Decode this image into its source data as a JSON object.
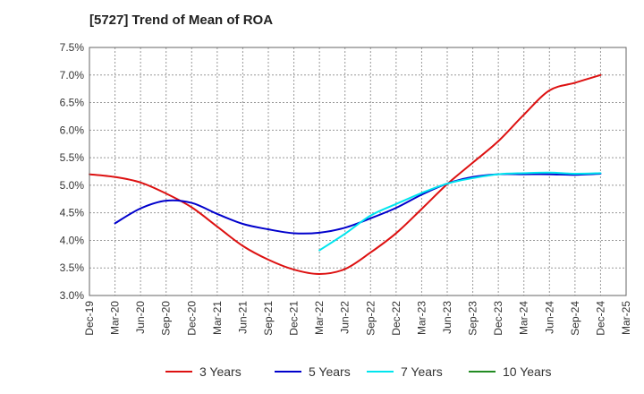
{
  "title": "[5727]  Trend of Mean of ROA",
  "chart_data": {
    "type": "line",
    "title": "[5727]  Trend of Mean of ROA",
    "xlabel": "",
    "ylabel": "",
    "ylim": [
      3.0,
      7.5
    ],
    "y_ticks": [
      "3.0%",
      "3.5%",
      "4.0%",
      "4.5%",
      "5.0%",
      "5.5%",
      "6.0%",
      "6.5%",
      "7.0%",
      "7.5%"
    ],
    "x_ticks": [
      "Dec-19",
      "Mar-20",
      "Jun-20",
      "Sep-20",
      "Dec-20",
      "Mar-21",
      "Jun-21",
      "Sep-21",
      "Dec-21",
      "Mar-22",
      "Jun-22",
      "Sep-22",
      "Dec-22",
      "Mar-23",
      "Jun-23",
      "Sep-23",
      "Dec-23",
      "Mar-24",
      "Jun-24",
      "Sep-24",
      "Dec-24",
      "Mar-25"
    ],
    "grid": true,
    "legend_position": "bottom",
    "series": [
      {
        "name": "3 Years",
        "color": "#dd1111",
        "x": [
          "Dec-19",
          "Mar-20",
          "Jun-20",
          "Sep-20",
          "Dec-20",
          "Mar-21",
          "Jun-21",
          "Sep-21",
          "Dec-21",
          "Mar-22",
          "Jun-22",
          "Sep-22",
          "Dec-22",
          "Mar-23",
          "Jun-23",
          "Sep-23",
          "Dec-23",
          "Mar-24",
          "Jun-24",
          "Sep-24",
          "Dec-24"
        ],
        "values": [
          5.2,
          5.15,
          5.05,
          4.85,
          4.6,
          4.25,
          3.9,
          3.65,
          3.47,
          3.39,
          3.48,
          3.78,
          4.13,
          4.57,
          5.02,
          5.41,
          5.8,
          6.28,
          6.72,
          6.86,
          7.0
        ]
      },
      {
        "name": "5 Years",
        "color": "#0000cc",
        "x": [
          "Mar-20",
          "Jun-20",
          "Sep-20",
          "Dec-20",
          "Mar-21",
          "Jun-21",
          "Sep-21",
          "Dec-21",
          "Mar-22",
          "Jun-22",
          "Sep-22",
          "Dec-22",
          "Mar-23",
          "Jun-23",
          "Sep-23",
          "Dec-23",
          "Mar-24",
          "Jun-24",
          "Sep-24",
          "Dec-24"
        ],
        "values": [
          4.31,
          4.58,
          4.72,
          4.68,
          4.48,
          4.3,
          4.2,
          4.13,
          4.14,
          4.23,
          4.4,
          4.59,
          4.83,
          5.03,
          5.15,
          5.2,
          5.2,
          5.2,
          5.19,
          5.21
        ]
      },
      {
        "name": "7 Years",
        "color": "#00e5ee",
        "x": [
          "Mar-22",
          "Jun-22",
          "Sep-22",
          "Dec-22",
          "Mar-23",
          "Jun-23",
          "Sep-23",
          "Dec-23",
          "Mar-24",
          "Jun-24",
          "Sep-24",
          "Dec-24"
        ],
        "values": [
          3.82,
          4.12,
          4.45,
          4.66,
          4.86,
          5.03,
          5.13,
          5.2,
          5.22,
          5.23,
          5.21,
          5.22
        ]
      },
      {
        "name": "10 Years",
        "color": "#228b22",
        "x": [],
        "values": []
      }
    ]
  }
}
